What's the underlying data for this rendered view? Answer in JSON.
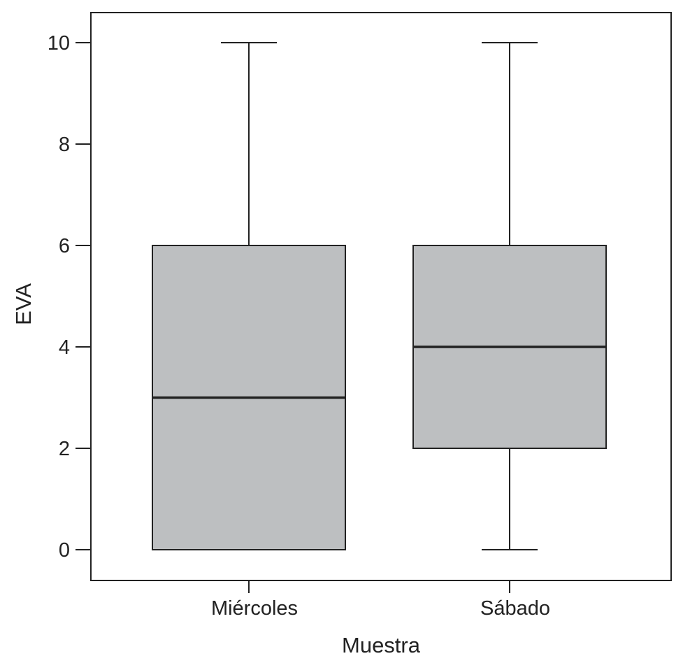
{
  "chart_data": {
    "type": "box",
    "title": "",
    "xlabel": "Muestra",
    "ylabel": "EVA",
    "categories": [
      "Miércoles",
      "Sábado"
    ],
    "boxes": [
      {
        "category": "Miércoles",
        "min": 0,
        "q1": 0,
        "median": 3,
        "q3": 6,
        "max": 10
      },
      {
        "category": "Sábado",
        "min": 0,
        "q1": 2,
        "median": 4,
        "q3": 6,
        "max": 10
      }
    ],
    "ylim": [
      -0.6,
      10.6
    ],
    "yticks": [
      0,
      2,
      4,
      6,
      8,
      10
    ],
    "ytick_labels": [
      "0",
      "2",
      "4",
      "6",
      "8",
      "10"
    ],
    "box_color": "#bdbfc1",
    "line_color": "#222222",
    "grid": false,
    "legend": "none"
  }
}
